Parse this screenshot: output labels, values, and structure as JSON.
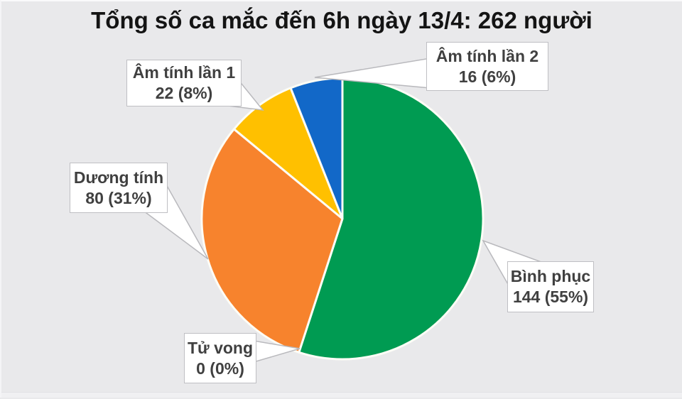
{
  "title": "Tổng số ca mắc đến 6h ngày 13/4: 262 người",
  "colors": {
    "background": "#e9e9eb",
    "recovered_green": "#009B52",
    "positive_orange": "#F7832D",
    "negative1_yellow": "#FFC000",
    "negative2_blue": "#1268C8",
    "callout_border": "#bfbfc3",
    "callout_text": "#404040",
    "slice_separator": "#fdfdf6"
  },
  "chart_data": {
    "type": "pie",
    "title": "Tổng số ca mắc đến 6h ngày 13/4: 262 người",
    "total_value": 262,
    "total_unit": "người",
    "start_angle_deg": 0,
    "direction": "clockwise",
    "legend_position": "callout-labels",
    "slices": [
      {
        "id": "binh-phuc",
        "label": "Bình phục",
        "value": 144,
        "pct": 55,
        "color": "#009B52"
      },
      {
        "id": "tu-vong",
        "label": "Tử vong",
        "value": 0,
        "pct": 0,
        "color": "#aaaaaa"
      },
      {
        "id": "duong-tinh",
        "label": "Dương tính",
        "value": 80,
        "pct": 31,
        "color": "#F7832D"
      },
      {
        "id": "am-tinh-lan-1",
        "label": "Âm tính lần 1",
        "value": 22,
        "pct": 8,
        "color": "#FFC000"
      },
      {
        "id": "am-tinh-lan-2",
        "label": "Âm tính lần 2",
        "value": 16,
        "pct": 6,
        "color": "#1268C8"
      }
    ]
  },
  "callouts": {
    "am_tinh_lan_1": {
      "title": "Âm tính lần 1",
      "value": "22 (8%)"
    },
    "am_tinh_lan_2": {
      "title": "Âm tính lần 2",
      "value": "16 (6%)"
    },
    "duong_tinh": {
      "title": "Dương tính",
      "value": "80 (31%)"
    },
    "tu_vong": {
      "title": "Tử vong",
      "value": "0 (0%)"
    },
    "binh_phuc": {
      "title": "Bình phục",
      "value": "144 (55%)"
    }
  }
}
